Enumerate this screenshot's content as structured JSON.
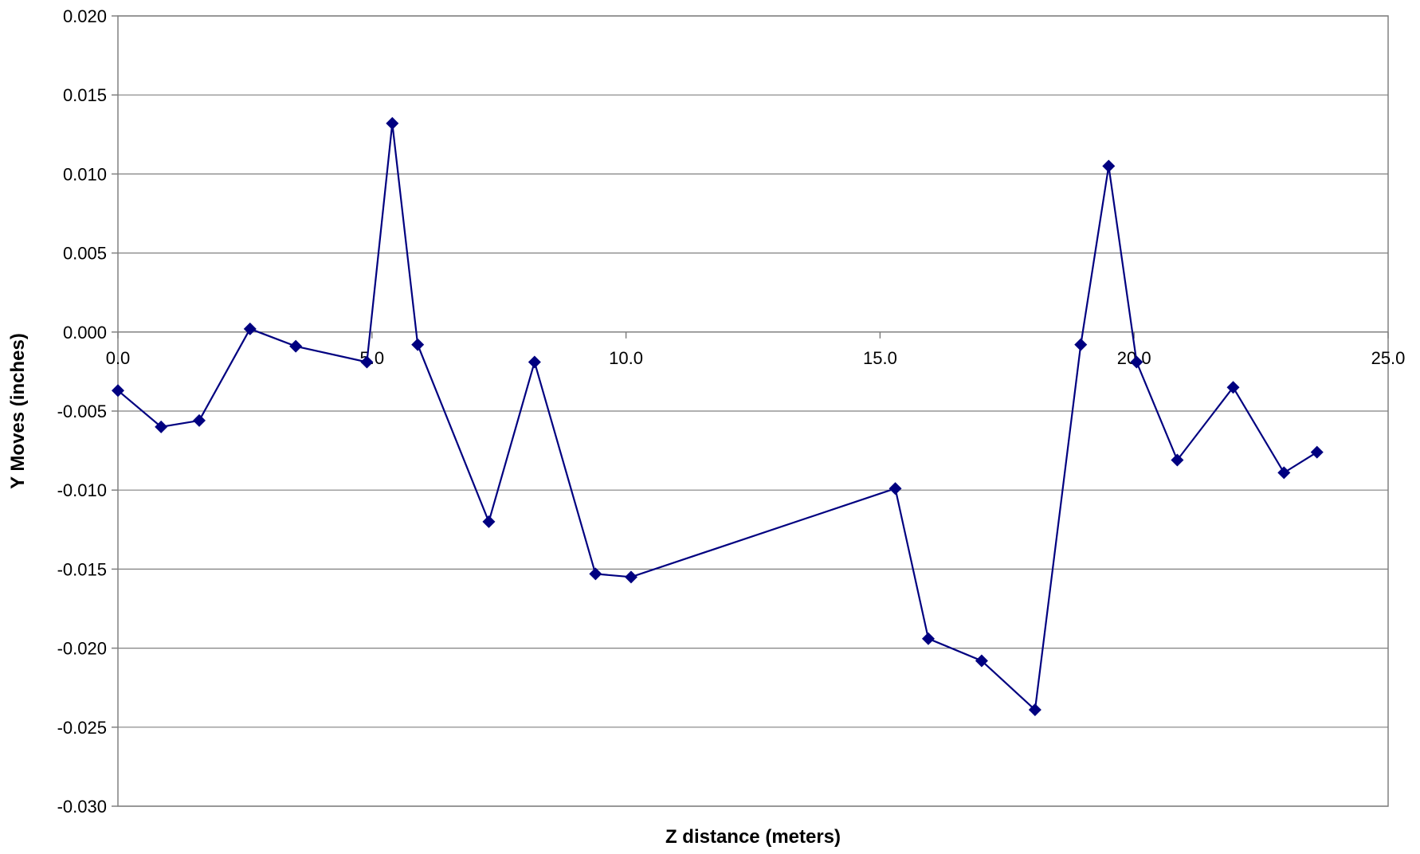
{
  "chart_data": {
    "type": "line",
    "title": "",
    "xlabel": "Z distance (meters)",
    "ylabel": "Y Moves (inches)",
    "xlim": [
      0,
      25
    ],
    "ylim": [
      -0.03,
      0.02
    ],
    "x_ticks": [
      "0.0",
      "5.0",
      "10.0",
      "15.0",
      "20.0",
      "25.0"
    ],
    "y_ticks": [
      "0.020",
      "0.015",
      "0.010",
      "0.005",
      "0.000",
      "-0.005",
      "-0.010",
      "-0.015",
      "-0.020",
      "-0.025",
      "-0.030"
    ],
    "grid": "horizontal",
    "legend": "none",
    "colors": {
      "series": "#000080",
      "grid": "#808080",
      "axis": "#808080"
    },
    "series": [
      {
        "marker": "diamond",
        "points": [
          {
            "x": 0.0,
            "y": -0.0037
          },
          {
            "x": 0.85,
            "y": -0.006
          },
          {
            "x": 1.6,
            "y": -0.0056
          },
          {
            "x": 2.6,
            "y": 0.0002
          },
          {
            "x": 3.5,
            "y": -0.0009
          },
          {
            "x": 4.9,
            "y": -0.0019
          },
          {
            "x": 5.4,
            "y": 0.0132
          },
          {
            "x": 5.9,
            "y": -0.0008
          },
          {
            "x": 7.3,
            "y": -0.012
          },
          {
            "x": 8.2,
            "y": -0.0019
          },
          {
            "x": 9.4,
            "y": -0.0153
          },
          {
            "x": 10.1,
            "y": -0.0155
          },
          {
            "x": 15.3,
            "y": -0.0099
          },
          {
            "x": 15.95,
            "y": -0.0194
          },
          {
            "x": 17.0,
            "y": -0.0208
          },
          {
            "x": 18.05,
            "y": -0.0239
          },
          {
            "x": 18.95,
            "y": -0.0008
          },
          {
            "x": 19.5,
            "y": 0.0105
          },
          {
            "x": 20.05,
            "y": -0.0019
          },
          {
            "x": 20.85,
            "y": -0.0081
          },
          {
            "x": 21.95,
            "y": -0.0035
          },
          {
            "x": 22.95,
            "y": -0.0089
          },
          {
            "x": 23.6,
            "y": -0.0076
          }
        ]
      }
    ]
  }
}
